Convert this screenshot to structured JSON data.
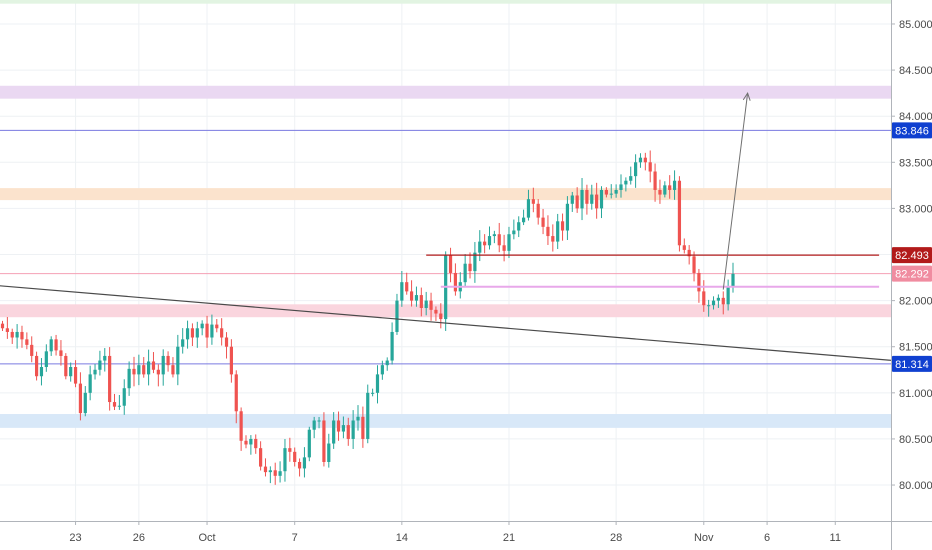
{
  "chart_data": {
    "type": "candlestick",
    "y_axis": {
      "range": [
        79.61,
        85.26
      ],
      "ticks": [
        "80.000",
        "80.500",
        "81.000",
        "81.500",
        "82.000",
        "82.500",
        "83.000",
        "83.500",
        "84.000",
        "84.500",
        "85.000"
      ],
      "position": "right"
    },
    "x_axis": {
      "ticks": [
        {
          "label": "23",
          "i": 15
        },
        {
          "label": "26",
          "i": 28
        },
        {
          "label": "Oct",
          "i": 42
        },
        {
          "label": "7",
          "i": 60
        },
        {
          "label": "14",
          "i": 82
        },
        {
          "label": "21",
          "i": 104
        },
        {
          "label": "28",
          "i": 126
        },
        {
          "label": "Nov",
          "i": 144
        },
        {
          "label": "6",
          "i": 157
        },
        {
          "label": "11",
          "i": 171
        }
      ]
    },
    "grid": true,
    "candle_closes": [
      81.7,
      81.66,
      81.6,
      81.66,
      81.58,
      81.52,
      81.4,
      81.18,
      81.28,
      81.45,
      81.58,
      81.46,
      81.4,
      81.18,
      81.28,
      81.1,
      80.78,
      81.0,
      81.2,
      81.25,
      81.35,
      81.4,
      80.9,
      80.85,
      80.86,
      81.05,
      81.26,
      81.2,
      81.3,
      81.2,
      81.34,
      81.25,
      81.2,
      81.4,
      81.3,
      81.2,
      81.5,
      81.58,
      81.7,
      81.6,
      81.7,
      81.75,
      81.6,
      81.74,
      81.7,
      81.6,
      81.5,
      81.2,
      80.8,
      80.48,
      80.44,
      80.5,
      80.4,
      80.2,
      80.14,
      80.16,
      80.1,
      80.15,
      80.4,
      80.36,
      80.25,
      80.18,
      80.3,
      80.6,
      80.7,
      80.7,
      80.25,
      80.45,
      80.7,
      80.58,
      80.65,
      80.5,
      80.7,
      80.74,
      80.5,
      81.0,
      81.0,
      81.2,
      81.3,
      81.35,
      81.66,
      82.0,
      82.2,
      82.1,
      82.0,
      82.06,
      81.92,
      82.0,
      81.9,
      81.86,
      81.8,
      82.49,
      82.3,
      82.1,
      82.2,
      82.4,
      82.32,
      82.52,
      82.64,
      82.6,
      82.7,
      82.72,
      82.6,
      82.54,
      82.72,
      82.76,
      82.85,
      82.9,
      83.1,
      83.05,
      82.9,
      82.8,
      82.7,
      82.64,
      82.86,
      82.76,
      83.05,
      83.14,
      83.0,
      83.2,
      83.05,
      83.15,
      83.0,
      83.2,
      83.15,
      83.16,
      83.2,
      83.26,
      83.3,
      83.35,
      83.5,
      83.55,
      83.5,
      83.4,
      83.2,
      83.15,
      83.25,
      83.2,
      83.3,
      82.6,
      82.55,
      82.48,
      82.3,
      82.1,
      81.95,
      81.95,
      82.0,
      82.03,
      81.96,
      82.15,
      82.29
    ],
    "annotations": {
      "price_badges": [
        {
          "value": 83.846,
          "label": "83.846",
          "color": "#1040d0"
        },
        {
          "value": 82.493,
          "label": "82.493",
          "color": "#b21a1a"
        },
        {
          "value": 82.292,
          "label": "82.292",
          "color": "#f08ca0"
        },
        {
          "value": 81.314,
          "label": "81.314",
          "color": "#1040d0"
        }
      ],
      "horizontal_lines": [
        {
          "value": 83.846,
          "color": "#7a7ae0",
          "width": 1
        },
        {
          "value": 82.292,
          "color": "#f4a0b4",
          "width": 1
        },
        {
          "value": 81.314,
          "color": "#7a7ae0",
          "width": 1
        }
      ],
      "segments": [
        {
          "x1": 87,
          "y1": 82.493,
          "x2": 180,
          "y2": 82.493,
          "color": "#b21a1a",
          "width": 1.2
        },
        {
          "x1": 90,
          "y1": 82.15,
          "x2": 180,
          "y2": 82.15,
          "color": "#e8a8ea",
          "width": 2
        },
        {
          "x1": -14,
          "y1": 82.22,
          "x2": 183,
          "y2": 81.35,
          "color": "#4a4a4a",
          "width": 1.2
        }
      ],
      "zones": [
        {
          "low": 85.22,
          "high": 85.26,
          "fill": "#e2f4e2"
        },
        {
          "low": 84.19,
          "high": 84.33,
          "fill": "#ead8f2"
        },
        {
          "low": 83.09,
          "high": 83.22,
          "fill": "#fbe3cd"
        },
        {
          "low": 81.82,
          "high": 81.96,
          "fill": "#fad5de"
        },
        {
          "low": 80.62,
          "high": 80.77,
          "fill": "#d8e8f8"
        }
      ],
      "arrow": {
        "x1": 148,
        "y1": 82.12,
        "x2": 153,
        "y2": 84.25,
        "color": "#707070"
      }
    }
  }
}
